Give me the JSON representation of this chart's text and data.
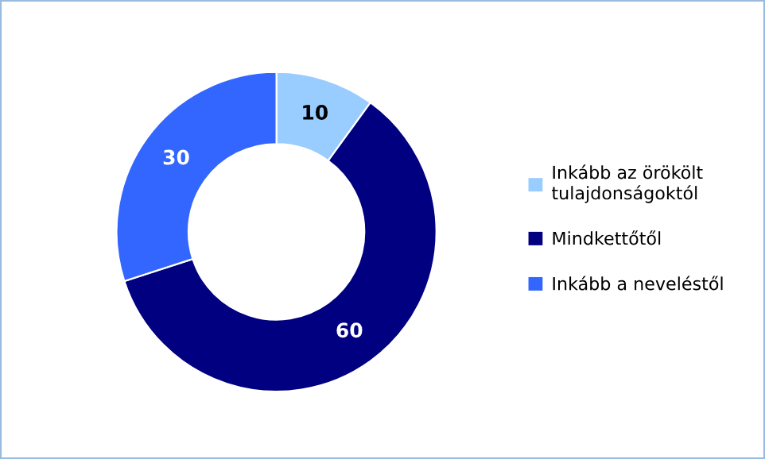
{
  "chart_data": {
    "type": "donut",
    "categories": [
      "Inkább az örökölt tulajdonságoktól",
      "Mindkettőtől",
      "Inkább a neveléstől"
    ],
    "values": [
      10,
      60,
      30
    ],
    "colors": [
      "#99ccff",
      "#000080",
      "#3366ff"
    ],
    "data_labels": true,
    "legend": "right"
  }
}
